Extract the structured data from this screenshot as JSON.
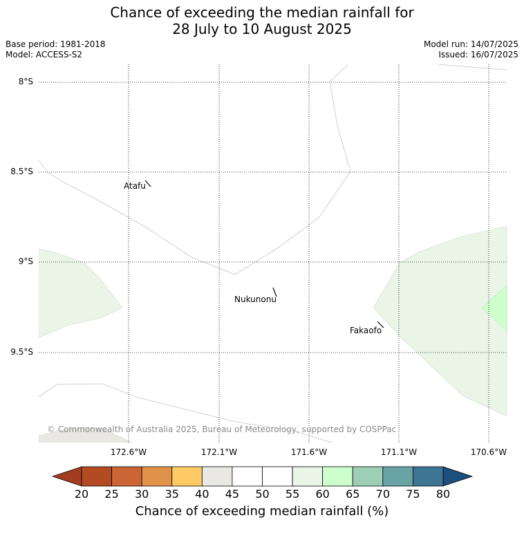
{
  "title": {
    "line1": "Chance of exceeding the median rainfall for",
    "line2": "28 July to 10 August 2025"
  },
  "meta": {
    "base_period": "Base period: 1981-2018",
    "model": "Model: ACCESS-S2",
    "model_run": "Model run: 14/07/2025",
    "issued": "Issued: 16/07/2025"
  },
  "map": {
    "lat_labels": [
      "8°S",
      "8.5°S",
      "9°S",
      "9.5°S"
    ],
    "lon_labels": [
      "172.6°W",
      "172.1°W",
      "171.6°W",
      "171.1°W",
      "170.6°W"
    ],
    "places": [
      "Atafu",
      "Nukunonu",
      "Fakaofo"
    ],
    "copyright": "© Commonwealth of Australia 2025, Bureau of Meteorology, supported by COSPPac",
    "colors": {
      "band_55_60": "#eaf5e8",
      "band_60_65": "#ccffcc",
      "band_40_45": "#e9e8e4",
      "grid": "#000000",
      "boundary": "#bbbbbb"
    }
  },
  "colorbar": {
    "ticks": [
      "20",
      "25",
      "30",
      "35",
      "40",
      "45",
      "50",
      "55",
      "60",
      "65",
      "70",
      "75",
      "80"
    ],
    "colors": [
      "#a33d20",
      "#b24a24",
      "#cb6535",
      "#e1924a",
      "#fdca66",
      "#e9e8e4",
      "#ffffff",
      "#ffffff",
      "#eaf5e8",
      "#ccffcc",
      "#9ecfb6",
      "#6aa3a6",
      "#3e7595",
      "#1b4f7c"
    ],
    "label": "Chance of exceeding median rainfall (%)"
  }
}
